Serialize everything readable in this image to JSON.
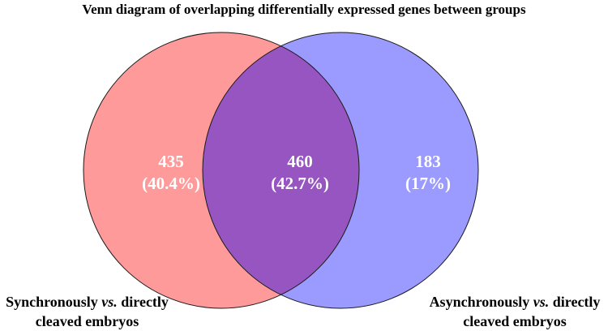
{
  "title": "Venn diagram of overlapping differentially expressed genes between groups",
  "colors": {
    "left_circle": "#ff9a9a",
    "right_circle": "#9a9aff",
    "overlap": "#9655c0",
    "outline": "#1a1a1a",
    "count_text": "#ffffff"
  },
  "sets": {
    "left": {
      "label_pre": "Synchronously ",
      "label_vs": "vs.",
      "label_post": " directly",
      "label_line2": "cleaved embryos",
      "count": "435",
      "percent": "(40.4%)"
    },
    "right": {
      "label_pre": "Asynchronously ",
      "label_vs": "vs.",
      "label_post": " directly",
      "label_line2": "cleaved embryos",
      "count": "183",
      "percent": "(17%)"
    },
    "overlap": {
      "count": "460",
      "percent": "(42.7%)"
    }
  }
}
